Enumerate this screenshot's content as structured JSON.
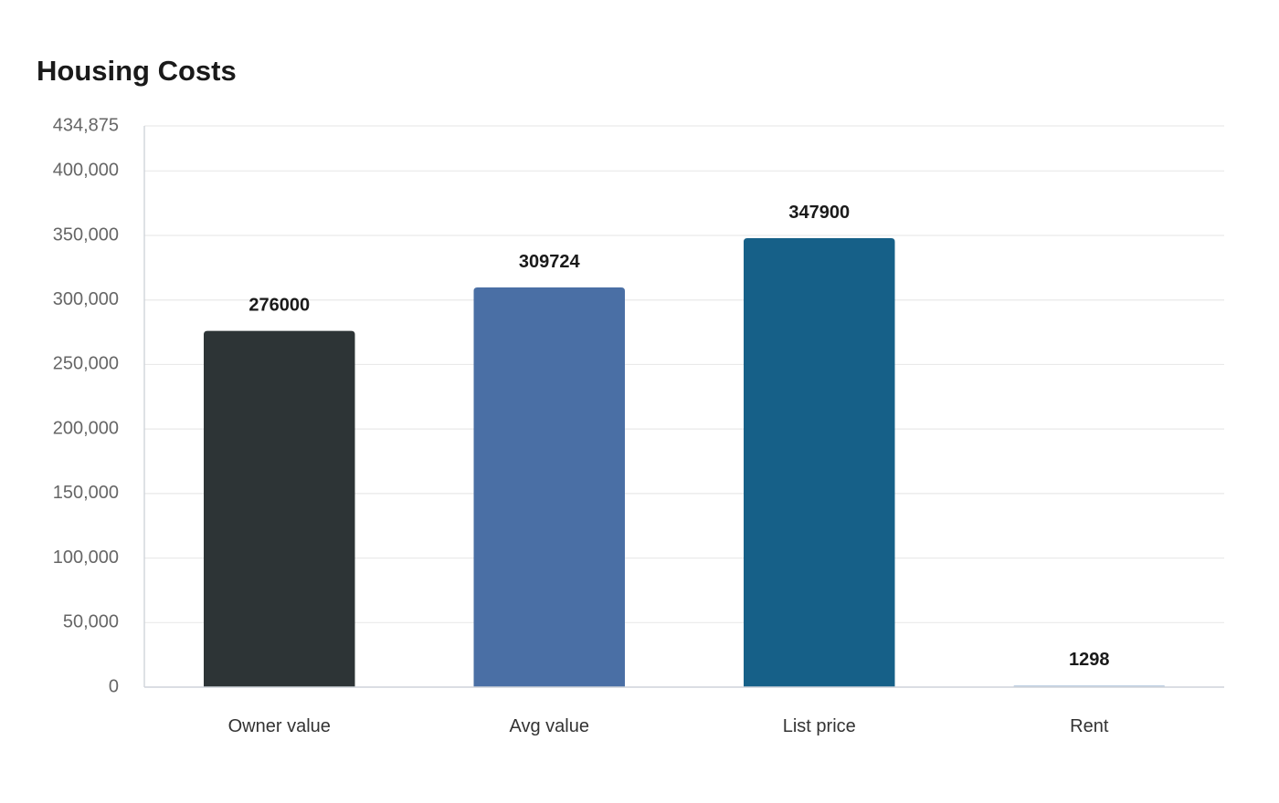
{
  "chart_data": {
    "type": "bar",
    "title": "Housing Costs",
    "xlabel": "",
    "ylabel": "",
    "categories": [
      "Owner value",
      "Avg value",
      "List price",
      "Rent"
    ],
    "values": [
      276000,
      309724,
      347900,
      1298
    ],
    "value_labels": [
      "276000",
      "309724",
      "347900",
      "1298"
    ],
    "colors": [
      "#2d3436",
      "#4a6fa5",
      "#166088",
      "#b8cbe0"
    ],
    "ylim": [
      0,
      434875
    ],
    "y_ticks": [
      0,
      50000,
      100000,
      150000,
      200000,
      250000,
      300000,
      350000,
      400000,
      434875
    ],
    "y_tick_labels": [
      "0",
      "50,000",
      "100,000",
      "150,000",
      "200,000",
      "250,000",
      "300,000",
      "350,000",
      "400,000",
      "434,875"
    ],
    "grid": true,
    "legend": "none"
  }
}
